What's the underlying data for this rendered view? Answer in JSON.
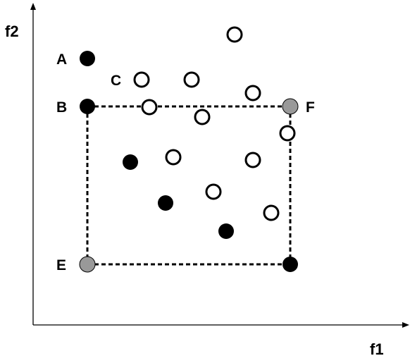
{
  "axes": {
    "x_label": "f1",
    "y_label": "f2"
  },
  "point_labels": {
    "A": "A",
    "B": "B",
    "C": "C",
    "E": "E",
    "F": "F"
  },
  "colors": {
    "axis": "#000000",
    "filled_point": "#000000",
    "hollow_point_fill": "#ffffff",
    "hollow_point_stroke": "#000000",
    "gray_point": "#999999",
    "box_line": "#000000"
  }
}
